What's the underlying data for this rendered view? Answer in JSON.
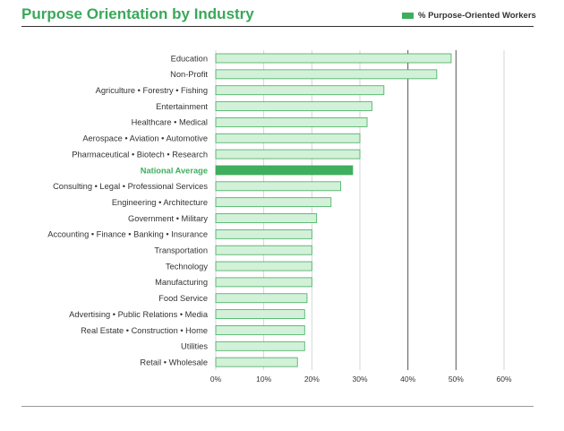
{
  "chart_data": {
    "type": "bar",
    "orientation": "horizontal",
    "title": "Purpose Orientation by Industry",
    "legend": [
      "% Purpose-Oriented Workers"
    ],
    "legend_position": "top-right",
    "categories": [
      "Education",
      "Non-Profit",
      "Agriculture • Forestry • Fishing",
      "Entertainment",
      "Healthcare • Medical",
      "Aerospace • Aviation • Automotive",
      "Pharmaceutical • Biotech • Research",
      "National Average",
      "Consulting • Legal • Professional Services",
      "Engineering • Architecture",
      "Government • Military",
      "Accounting • Finance • Banking • Insurance",
      "Transportation",
      "Technology",
      "Manufacturing",
      "Food Service",
      "Advertising • Public Relations • Media",
      "Real Estate • Construction • Home",
      "Utilities",
      "Retail • Wholesale"
    ],
    "values": [
      49,
      46,
      35,
      32.5,
      31.5,
      30,
      30,
      28.5,
      26,
      24,
      21,
      20,
      20,
      20,
      20,
      19,
      18.5,
      18.5,
      18.5,
      17
    ],
    "highlight_category": "National Average",
    "xlim": [
      0,
      60
    ],
    "xticks": [
      "0%",
      "10%",
      "20%",
      "30%",
      "40%",
      "50%",
      "60%"
    ],
    "grid": true,
    "colors": {
      "bar_fill": "#d3f0d8",
      "bar_stroke": "#3fae5e",
      "highlight": "#3fae5e",
      "title": "#3aa85a"
    }
  }
}
